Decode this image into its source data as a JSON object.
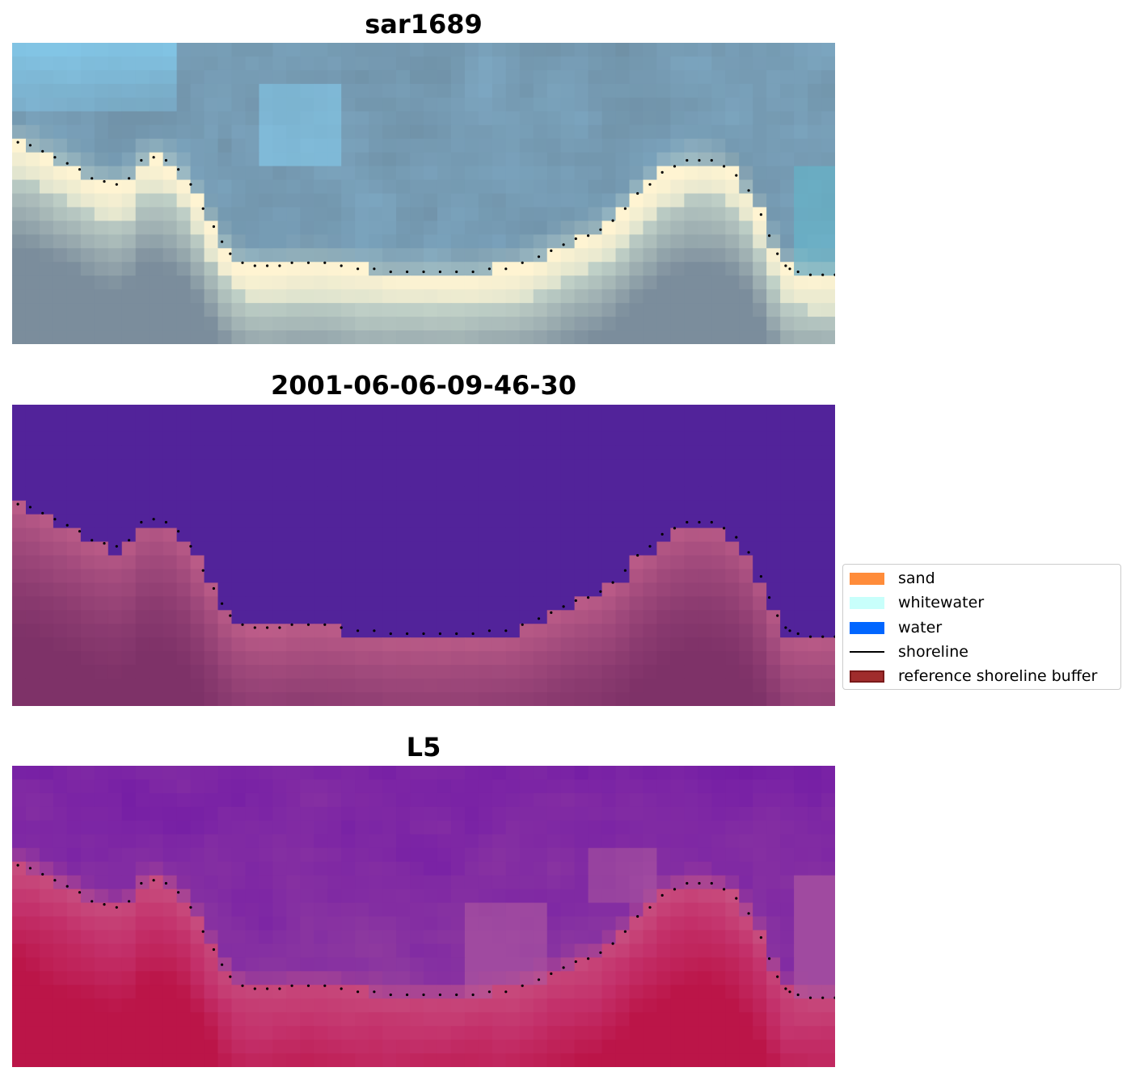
{
  "chart_data": [
    {
      "type": "heatmap",
      "title": "sar1689",
      "palette": {
        "ramp": [
          "#7b8d9c",
          "#6e8ea3",
          "#7ea9c4",
          "#c8d8cc",
          "#fff4d2"
        ],
        "bright_sky": "#86d3f6",
        "cyan_band": "#62b7cc"
      },
      "grid": false,
      "shoreline_style": "dotted"
    },
    {
      "type": "heatmap",
      "title": "2001-06-06-09-46-30",
      "palette": {
        "water": "#52239a",
        "land_ramp": [
          "#c05f8a",
          "#a14a7c",
          "#8b3b70",
          "#7e3268"
        ]
      },
      "grid": false,
      "shoreline_style": "dotted"
    },
    {
      "type": "heatmap",
      "title": "L5",
      "palette": {
        "water_ramp": [
          "#5f0aa3",
          "#7b24a5",
          "#903c9e",
          "#a04aa0"
        ],
        "land_ramp": [
          "#c95685",
          "#c3306a",
          "#bb1548"
        ]
      },
      "grid": false,
      "shoreline_style": "dotted"
    }
  ],
  "shoreline": {
    "x": [
      0.007,
      0.022,
      0.037,
      0.052,
      0.067,
      0.082,
      0.097,
      0.112,
      0.127,
      0.142,
      0.157,
      0.172,
      0.187,
      0.202,
      0.217,
      0.232,
      0.245,
      0.255,
      0.265,
      0.28,
      0.295,
      0.31,
      0.325,
      0.34,
      0.36,
      0.38,
      0.4,
      0.42,
      0.44,
      0.46,
      0.48,
      0.5,
      0.52,
      0.54,
      0.56,
      0.58,
      0.6,
      0.62,
      0.64,
      0.655,
      0.67,
      0.685,
      0.7,
      0.715,
      0.73,
      0.745,
      0.76,
      0.775,
      0.79,
      0.805,
      0.82,
      0.835,
      0.85,
      0.865,
      0.88,
      0.895,
      0.91,
      0.92,
      0.93,
      0.94,
      0.945,
      0.955,
      0.97,
      0.985,
      1.0
    ],
    "y": [
      0.33,
      0.34,
      0.36,
      0.38,
      0.4,
      0.42,
      0.45,
      0.46,
      0.47,
      0.45,
      0.39,
      0.38,
      0.39,
      0.42,
      0.47,
      0.55,
      0.61,
      0.66,
      0.7,
      0.73,
      0.74,
      0.74,
      0.74,
      0.73,
      0.73,
      0.73,
      0.74,
      0.75,
      0.75,
      0.76,
      0.76,
      0.76,
      0.76,
      0.76,
      0.76,
      0.75,
      0.75,
      0.73,
      0.71,
      0.69,
      0.67,
      0.65,
      0.64,
      0.62,
      0.59,
      0.55,
      0.5,
      0.47,
      0.43,
      0.41,
      0.39,
      0.39,
      0.39,
      0.41,
      0.44,
      0.49,
      0.57,
      0.64,
      0.7,
      0.74,
      0.75,
      0.76,
      0.77,
      0.77,
      0.77
    ]
  },
  "legend": {
    "placement": "right",
    "items": [
      {
        "label": "sand",
        "kind": "patch",
        "color": "#ff8c3a"
      },
      {
        "label": "whitewater",
        "kind": "patch",
        "color": "#c8fffb"
      },
      {
        "label": "water",
        "kind": "patch",
        "color": "#0066ff"
      },
      {
        "label": "shoreline",
        "kind": "line",
        "color": "#000000"
      },
      {
        "label": "reference shoreline buffer",
        "kind": "patch",
        "color": "#a02c2c",
        "edge": "#7a1a1a"
      }
    ]
  }
}
